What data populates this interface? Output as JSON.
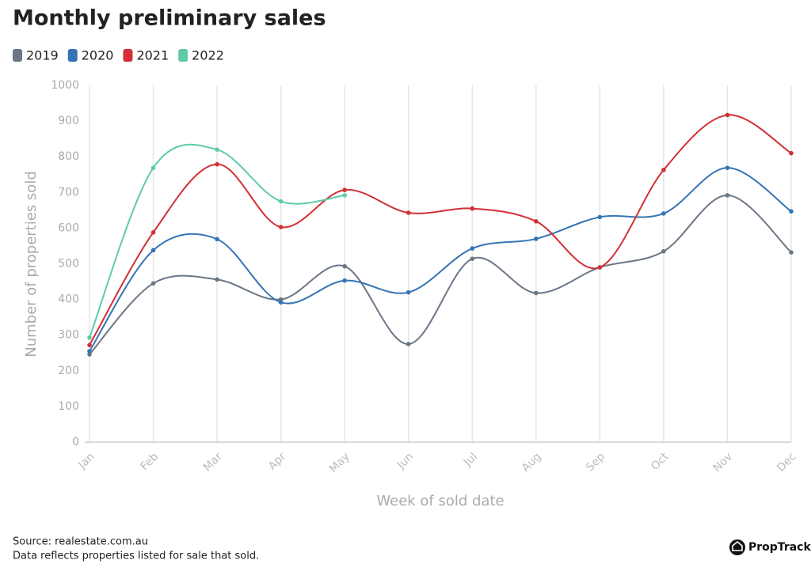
{
  "chart_data": {
    "type": "line",
    "title": "Monthly preliminary sales",
    "x_label": "Week of sold date",
    "y_label": "Number of properties sold",
    "categories": [
      "Jan",
      "Feb",
      "Mar",
      "Apr",
      "May",
      "Jun",
      "Jul",
      "Aug",
      "Sep",
      "Oct",
      "Nov",
      "Dec"
    ],
    "series": [
      {
        "name": "2019",
        "color": "#6b7686",
        "values": [
          246,
          445,
          456,
          400,
          493,
          275,
          514,
          418,
          490,
          535,
          692,
          532
        ]
      },
      {
        "name": "2020",
        "color": "#3474b6",
        "values": [
          255,
          538,
          569,
          392,
          453,
          420,
          543,
          570,
          631,
          641,
          769,
          647
        ]
      },
      {
        "name": "2021",
        "color": "#d22f36",
        "values": [
          272,
          588,
          779,
          603,
          707,
          643,
          655,
          619,
          490,
          763,
          917,
          810
        ]
      },
      {
        "name": "2022",
        "color": "#5ecaa9",
        "values": [
          293,
          769,
          820,
          675,
          692,
          null,
          null,
          null,
          null,
          null,
          null,
          null
        ]
      }
    ],
    "ylim": [
      0,
      1000
    ],
    "yticks": [
      0,
      100,
      200,
      300,
      400,
      500,
      600,
      700,
      800,
      900,
      1000
    ],
    "grid": "x",
    "legend": "top-left",
    "source": "Source: realestate.com.au",
    "note": "Data reflects properties listed for sale that sold.",
    "logo": "PropTrack"
  }
}
